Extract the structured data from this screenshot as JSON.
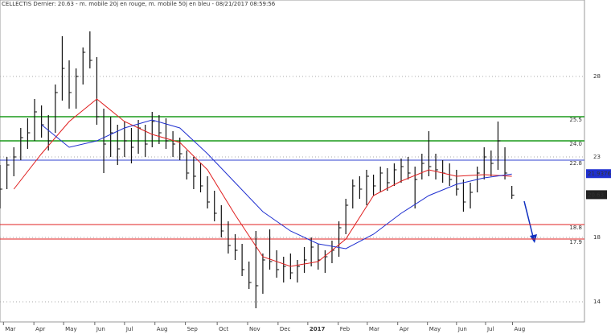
{
  "chart_data": {
    "type": "ohlc",
    "title": "CELLECTIS Dernier: 20.63 - m. mobile 20j en rouge, m. mobile 50j en bleu - 08/21/2017 08:59:56",
    "xlim": [
      0,
      84.5
    ],
    "ylim": [
      12.75,
      32.75
    ],
    "yticks": [
      14,
      18,
      23,
      28
    ],
    "xticks": [
      {
        "value": 0.5,
        "label": "Mar"
      },
      {
        "value": 4.9,
        "label": "Apr"
      },
      {
        "value": 9.2,
        "label": "May"
      },
      {
        "value": 13.7,
        "label": "Jun"
      },
      {
        "value": 18,
        "label": "Jul"
      },
      {
        "value": 22.4,
        "label": "Aug"
      },
      {
        "value": 26.8,
        "label": "Sep"
      },
      {
        "value": 31.4,
        "label": "Oct"
      },
      {
        "value": 35.8,
        "label": "Nov"
      },
      {
        "value": 40.2,
        "label": "Dec"
      },
      {
        "value": 44.5,
        "label": "2017"
      },
      {
        "value": 48.9,
        "label": "Feb"
      },
      {
        "value": 53.1,
        "label": "Mar"
      },
      {
        "value": 57.5,
        "label": "Apr"
      },
      {
        "value": 61.8,
        "label": "May"
      },
      {
        "value": 66,
        "label": "Jun"
      },
      {
        "value": 70.2,
        "label": "Jul"
      },
      {
        "value": 74.1,
        "label": "Aug"
      }
    ],
    "grid": true,
    "color": "#111111",
    "x": [
      0,
      1,
      2,
      3,
      4,
      5,
      6,
      7,
      8,
      9,
      10,
      11,
      12,
      13,
      14,
      15,
      16,
      17,
      18,
      19,
      20,
      21,
      22,
      23,
      24,
      25,
      26,
      27,
      28,
      29,
      30,
      31,
      32,
      33,
      34,
      35,
      36,
      37,
      38,
      39,
      40,
      41,
      42,
      43,
      44,
      45,
      46,
      47,
      48,
      49,
      50,
      51,
      52,
      53,
      54,
      55,
      56,
      57,
      58,
      59,
      60,
      61,
      62,
      63,
      64,
      65,
      66,
      67,
      68,
      69,
      70,
      71,
      72,
      73,
      74
    ],
    "high": [
      22.5,
      23.0,
      23.6,
      24.8,
      25.4,
      26.6,
      26.2,
      25.6,
      27.5,
      30.5,
      29.0,
      28.5,
      29.8,
      30.8,
      29.2,
      26.0,
      25.5,
      25.0,
      25.2,
      24.8,
      25.3,
      25.0,
      25.8,
      25.6,
      25.4,
      24.6,
      24.2,
      23.4,
      23.0,
      22.6,
      21.8,
      20.9,
      20.0,
      19.0,
      18.2,
      17.6,
      16.5,
      18.4,
      17.0,
      18.5,
      17.2,
      16.8,
      17.0,
      16.6,
      17.4,
      18.0,
      17.6,
      17.2,
      17.8,
      19.0,
      20.4,
      21.6,
      21.8,
      22.2,
      21.9,
      22.4,
      22.3,
      22.6,
      22.9,
      23.0,
      22.4,
      23.2,
      24.6,
      23.2,
      22.8,
      22.6,
      22.2,
      21.6,
      21.4,
      22.4,
      23.6,
      23.4,
      25.2,
      23.6,
      21.2
    ],
    "low": [
      19.8,
      21.0,
      21.8,
      22.8,
      23.5,
      24.0,
      24.2,
      23.4,
      24.5,
      26.5,
      26.0,
      26.0,
      27.5,
      28.5,
      25.0,
      22.0,
      23.0,
      22.5,
      23.0,
      22.6,
      23.2,
      23.0,
      23.6,
      23.8,
      23.5,
      23.0,
      22.8,
      21.6,
      21.0,
      20.8,
      19.8,
      19.0,
      18.0,
      17.0,
      16.6,
      15.6,
      14.8,
      13.6,
      14.5,
      16.0,
      15.5,
      15.2,
      15.4,
      15.2,
      15.8,
      16.2,
      16.0,
      15.8,
      16.4,
      16.8,
      18.2,
      19.8,
      20.4,
      20.0,
      20.6,
      20.8,
      20.9,
      21.2,
      21.4,
      21.6,
      19.8,
      21.6,
      21.8,
      21.6,
      21.4,
      21.2,
      20.6,
      19.6,
      19.8,
      20.8,
      21.6,
      21.8,
      22.2,
      21.6,
      20.4
    ],
    "close": [
      21.0,
      22.5,
      23.0,
      24.2,
      24.5,
      25.8,
      25.0,
      24.0,
      27.0,
      28.5,
      27.0,
      28.0,
      29.5,
      29.0,
      25.5,
      23.8,
      24.5,
      23.5,
      24.0,
      23.6,
      24.8,
      23.8,
      25.2,
      24.5,
      24.0,
      23.8,
      23.2,
      22.0,
      21.8,
      21.2,
      20.2,
      19.5,
      18.4,
      17.5,
      17.2,
      16.0,
      15.2,
      15.0,
      16.6,
      16.5,
      16.0,
      16.2,
      15.8,
      16.2,
      16.6,
      17.4,
      16.6,
      16.8,
      17.2,
      18.6,
      20.0,
      21.2,
      21.0,
      21.8,
      21.2,
      22.0,
      21.4,
      22.2,
      22.4,
      22.0,
      21.6,
      22.6,
      22.4,
      22.2,
      22.0,
      21.6,
      21.0,
      20.2,
      20.8,
      22.0,
      23.0,
      22.6,
      24.0,
      22.0,
      20.63
    ],
    "series": [
      {
        "color": "#e02020",
        "x": [
          2,
          6,
          10,
          14,
          18,
          22,
          26,
          30,
          34,
          38,
          42,
          46,
          50,
          54,
          58,
          62,
          66,
          70,
          74
        ],
        "values": [
          21.0,
          23.2,
          25.2,
          26.6,
          25.2,
          24.4,
          23.9,
          22.2,
          19.4,
          16.8,
          16.2,
          16.5,
          17.9,
          20.6,
          21.5,
          22.2,
          21.8,
          21.9,
          21.8
        ]
      },
      {
        "color": "#2030d0",
        "x": [
          2,
          6,
          10,
          14,
          18,
          22,
          26,
          30,
          34,
          38,
          42,
          46,
          50,
          54,
          58,
          62,
          66,
          70,
          74
        ],
        "values": [
          null,
          25.0,
          23.6,
          24.0,
          24.8,
          25.3,
          24.8,
          23.2,
          21.4,
          19.6,
          18.4,
          17.6,
          17.3,
          18.2,
          19.5,
          20.6,
          21.3,
          21.7,
          21.9376
        ]
      }
    ],
    "levels": [
      {
        "value": 25.5,
        "color": "#1a9a1a"
      },
      {
        "value": 24.0,
        "label": "24.0",
        "color": "#1a9a1a"
      },
      {
        "value": 22.8,
        "color": "#3040d0"
      },
      {
        "value": 18.8,
        "color": "#e02020"
      },
      {
        "value": 17.9,
        "color": "#e02020"
      }
    ]
  }
}
